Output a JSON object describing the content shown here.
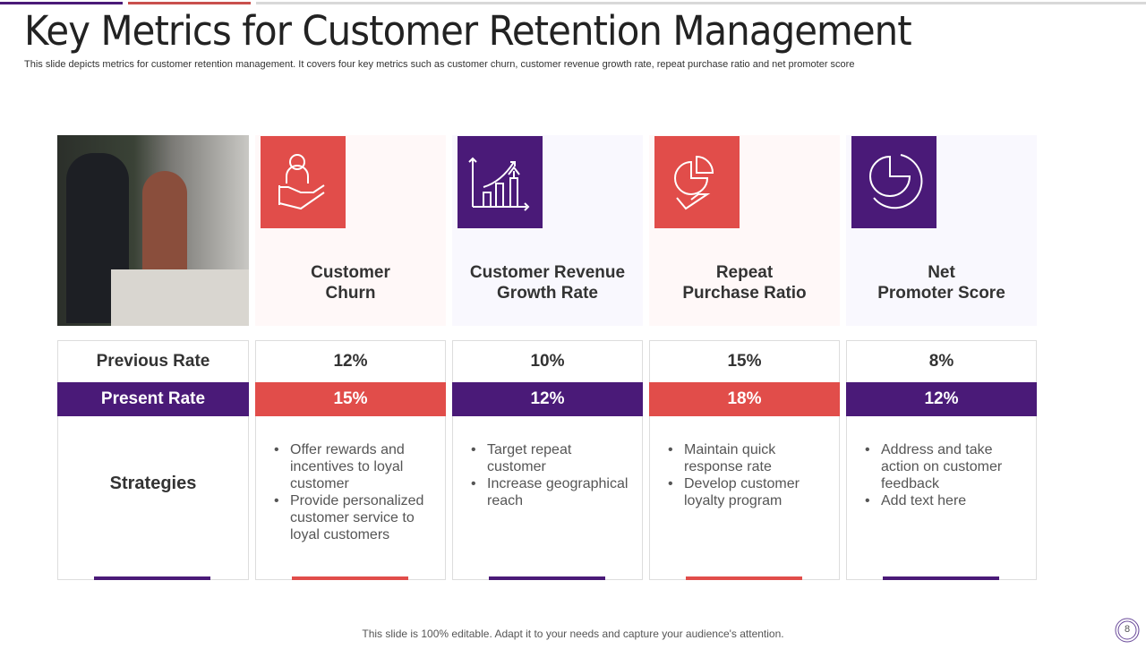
{
  "title": "Key Metrics for Customer Retention Management",
  "subtitle": "This slide depicts metrics for customer retention management. It covers four key metrics such as customer churn, customer revenue growth rate, repeat purchase ratio and net promoter score",
  "colors": {
    "red": "#e14d4a",
    "purple": "#4a1a78",
    "red_tint": "#fff8f8",
    "purple_tint": "#f9f8fe"
  },
  "row_labels": {
    "previous": "Previous Rate",
    "present": "Present Rate",
    "strategies": "Strategies"
  },
  "metrics": [
    {
      "title1": "Customer",
      "title2": "Churn",
      "icon": "hand-person-icon",
      "previous": "12%",
      "present": "15%",
      "strategies": [
        "Offer rewards and incentives to loyal customer",
        "Provide personalized customer service to loyal customers"
      ]
    },
    {
      "title1": "Customer Revenue",
      "title2": "Growth Rate",
      "icon": "growth-chart-icon",
      "previous": "10%",
      "present": "12%",
      "strategies": [
        "Target repeat customer",
        "Increase geographical reach"
      ]
    },
    {
      "title1": "Repeat",
      "title2": "Purchase Ratio",
      "icon": "hand-pie-chart-icon",
      "previous": "15%",
      "present": "18%",
      "strategies": [
        "Maintain quick response rate",
        "Develop customer loyalty  program"
      ]
    },
    {
      "title1": "Net",
      "title2": "Promoter Score",
      "icon": "pie-chart-icon",
      "previous": "8%",
      "present": "12%",
      "strategies": [
        "Address and take action on customer feedback",
        "Add text here"
      ]
    }
  ],
  "footer": "This slide is 100% editable. Adapt it to your needs and capture your audience's attention.",
  "page_number": "8"
}
